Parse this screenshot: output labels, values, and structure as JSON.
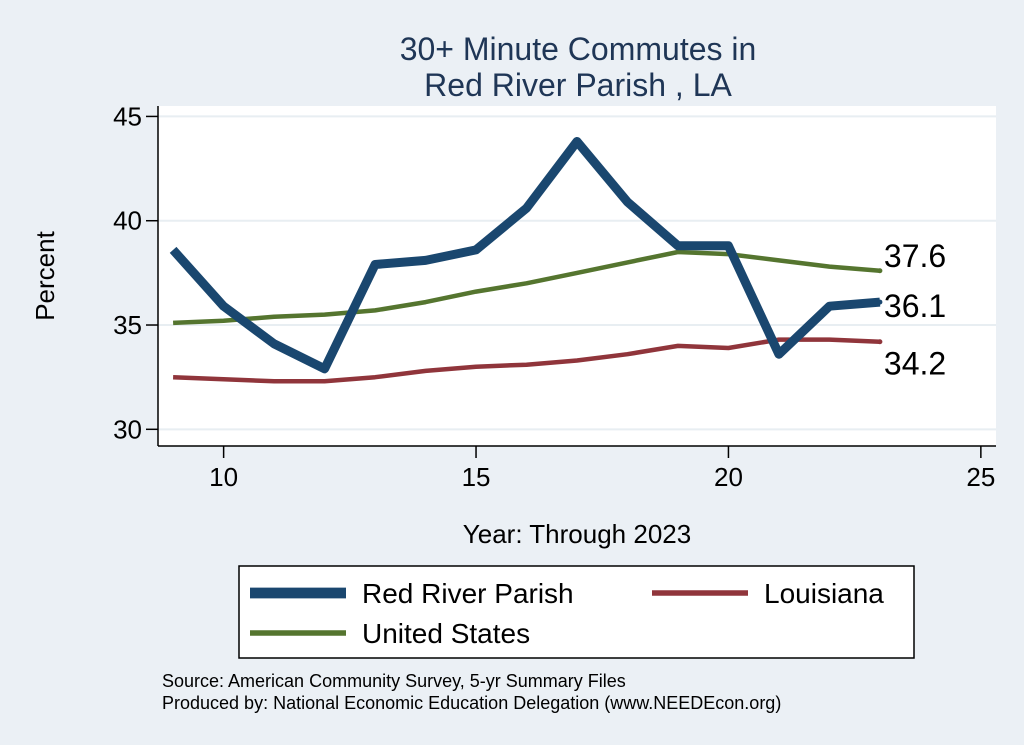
{
  "chart_data": {
    "type": "line",
    "title_lines": [
      "30+ Minute Commutes in",
      "Red River Parish , LA"
    ],
    "xlabel": "Year: Through 2023",
    "ylabel": "Percent",
    "xlim": [
      8.7,
      25.3
    ],
    "ylim": [
      29.2,
      45.5
    ],
    "xticks": [
      10,
      15,
      20,
      25
    ],
    "yticks": [
      30,
      35,
      40,
      45
    ],
    "grid": true,
    "legend_position": "bottom",
    "series": [
      {
        "name": "Red River Parish",
        "color": "#1a476f",
        "width": "thick",
        "x": [
          9,
          10,
          11,
          12,
          13,
          14,
          15,
          16,
          17,
          18,
          19,
          20,
          21,
          22,
          23
        ],
        "values": [
          38.6,
          35.9,
          34.1,
          32.9,
          37.9,
          38.1,
          38.6,
          40.6,
          43.8,
          40.9,
          38.8,
          38.8,
          33.6,
          35.9,
          36.1
        ],
        "end_label": "36.1"
      },
      {
        "name": "Louisiana",
        "color": "#90353b",
        "width": "medium",
        "x": [
          9,
          10,
          11,
          12,
          13,
          14,
          15,
          16,
          17,
          18,
          19,
          20,
          21,
          22,
          23
        ],
        "values": [
          32.5,
          32.4,
          32.3,
          32.3,
          32.5,
          32.8,
          33.0,
          33.1,
          33.3,
          33.6,
          34.0,
          33.9,
          34.3,
          34.3,
          34.2
        ],
        "end_label": "34.2"
      },
      {
        "name": "United States",
        "color": "#55752f",
        "width": "medium",
        "x": [
          9,
          10,
          11,
          12,
          13,
          14,
          15,
          16,
          17,
          18,
          19,
          20,
          21,
          22,
          23
        ],
        "values": [
          35.1,
          35.2,
          35.4,
          35.5,
          35.7,
          36.1,
          36.6,
          37.0,
          37.5,
          38.0,
          38.5,
          38.4,
          38.1,
          37.8,
          37.6
        ],
        "end_label": "37.6"
      }
    ],
    "notes": [
      "Source: American Community Survey, 5-yr Summary Files",
      "Produced by: National Economic Education Delegation (www.NEEDEcon.org)"
    ]
  }
}
